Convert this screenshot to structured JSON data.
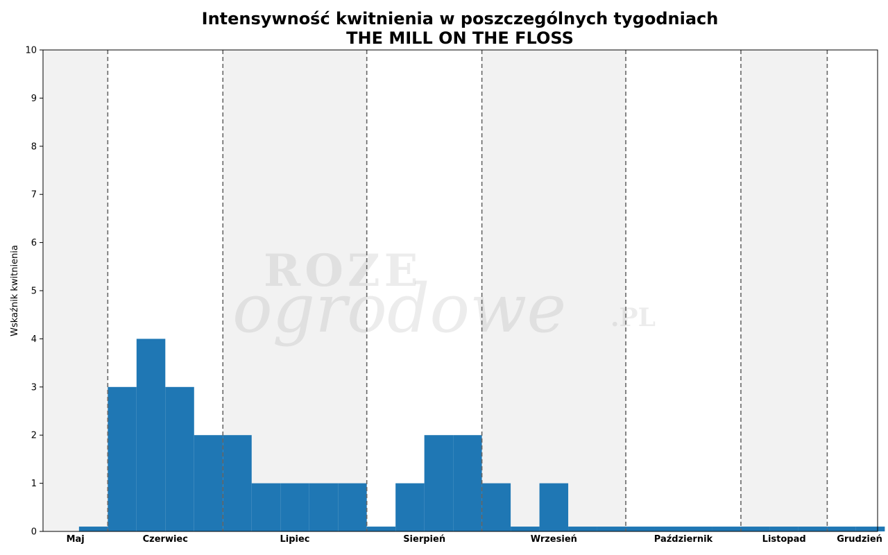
{
  "chart_data": {
    "type": "bar",
    "title": "Intensywność kwitnienia w poszczególnych tygodniach",
    "subtitle": "THE MILL ON THE FLOSS",
    "xlabel": "",
    "ylabel": "Wskaźnik kwitnienia",
    "ylim": [
      0,
      10
    ],
    "yticks": [
      0,
      1,
      2,
      3,
      4,
      5,
      6,
      7,
      8,
      9,
      10
    ],
    "grid": false,
    "color": "#1f77b4",
    "shade_color": "#f2f2f2",
    "divider_color": "#666666",
    "weeks_total": 29,
    "values": [
      0.1,
      3,
      4,
      3,
      2,
      2,
      1,
      1,
      1,
      1,
      0.1,
      1,
      2,
      2,
      1,
      0.1,
      1,
      0.1,
      0.1,
      0.1,
      0.1,
      0.1,
      0.1,
      0.1,
      0.1,
      0.1,
      0.1,
      0.1
    ],
    "months": [
      {
        "label": "Maj",
        "weeks": 2.25,
        "shaded": true
      },
      {
        "label": "Czerwiec",
        "weeks": 4,
        "shaded": false
      },
      {
        "label": "Lipiec",
        "weeks": 5,
        "shaded": true
      },
      {
        "label": "Sierpień",
        "weeks": 4,
        "shaded": false
      },
      {
        "label": "Wrzesień",
        "weeks": 5,
        "shaded": true
      },
      {
        "label": "Październik",
        "weeks": 4,
        "shaded": false
      },
      {
        "label": "Listopad",
        "weeks": 3,
        "shaded": true
      },
      {
        "label": "Grudzień",
        "weeks": 2.25,
        "shaded": false
      }
    ]
  },
  "watermark": {
    "line1": "ROZE",
    "line2": "ogrodowe",
    "line3": ".PL"
  }
}
